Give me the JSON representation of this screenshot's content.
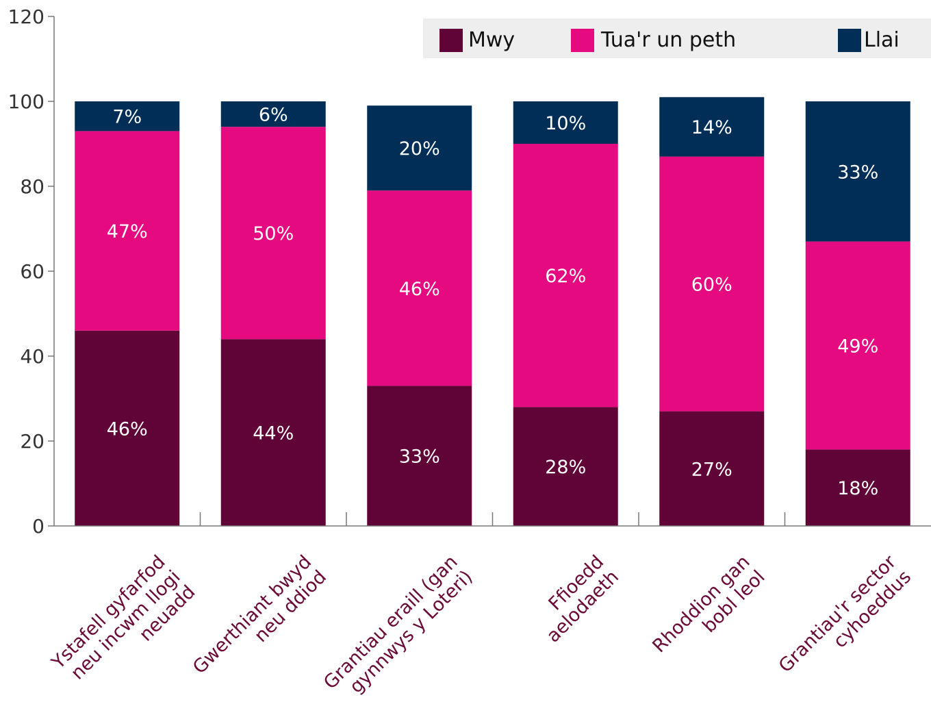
{
  "chart_data": {
    "type": "bar",
    "stacked": true,
    "categories": [
      [
        "Ystafell gyfarfod",
        "neu incwm llogi",
        "neuadd"
      ],
      [
        "Gwerthiant bwyd",
        "neu ddiod"
      ],
      [
        "Grantiau eraill (gan",
        "gynnwys y Loteri)"
      ],
      [
        "Ffioedd",
        "aelodaeth"
      ],
      [
        "Rhoddion gan",
        "bobl leol"
      ],
      [
        "Grantiau'r sector",
        "cyhoeddus"
      ]
    ],
    "series": [
      {
        "name": "Mwy",
        "color": "#600437",
        "values": [
          46,
          44,
          33,
          28,
          27,
          18
        ],
        "labels": [
          "46%",
          "44%",
          "33%",
          "28%",
          "27%",
          "18%"
        ]
      },
      {
        "name": "Tua'r un peth",
        "color": "#e50a7f",
        "values": [
          47,
          50,
          46,
          62,
          60,
          49
        ],
        "labels": [
          "47%",
          "50%",
          "46%",
          "62%",
          "60%",
          "49%"
        ]
      },
      {
        "name": "Llai",
        "color": "#002e57",
        "values": [
          7,
          6,
          20,
          10,
          14,
          33
        ],
        "labels": [
          "7%",
          "6%",
          "20%",
          "10%",
          "14%",
          "33%"
        ]
      }
    ],
    "ylim": [
      0,
      120
    ],
    "yticks": [
      "0",
      "20",
      "40",
      "60",
      "80",
      "100",
      "120"
    ],
    "legend": {
      "position": "top-right",
      "background": "#eeeeee"
    },
    "grid": false
  }
}
